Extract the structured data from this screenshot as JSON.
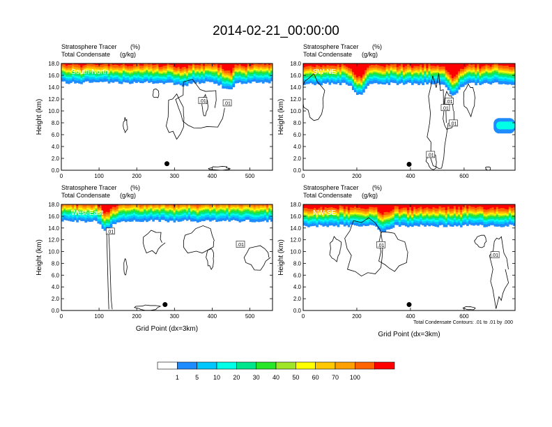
{
  "title": "2014-02-21_00:00:00",
  "colors": [
    "#ffffff",
    "#1e8cff",
    "#00c8ff",
    "#00ffe6",
    "#00e68c",
    "#28e628",
    "#a0e628",
    "#ffff00",
    "#ffc800",
    "#ffa000",
    "#ff6400",
    "#ff0000"
  ],
  "colorbar": {
    "labels": [
      "1",
      "5",
      "10",
      "20",
      "30",
      "40",
      "50",
      "60",
      "70",
      "100"
    ]
  },
  "note": "Total Condensate Contours: .01 to .01 by .000",
  "chart_data": [
    {
      "type": "heatmap",
      "subtitle_left": "Stratosphere Tracer",
      "subtitle_right": "(%)",
      "subtitle2_left": "Total Condensate",
      "subtitle2_right": "(g/kg)",
      "direction_label": "South-North",
      "ylabel": "Height (km)",
      "xlabel": "",
      "xlim": [
        0,
        560
      ],
      "ylim": [
        0,
        18
      ],
      "xticks": [
        "0",
        "100",
        "200",
        "300",
        "400",
        "500"
      ],
      "xtick_values": [
        0,
        100,
        200,
        300,
        400,
        500
      ],
      "yticks": [
        "0.0",
        "2.0",
        "4.0",
        "6.0",
        "8.0",
        "10.0",
        "12.0",
        "14.0",
        "16.0",
        "18.0"
      ],
      "contour_labels": [
        ".01",
        ".01"
      ],
      "contour_label_pos": [
        [
          375,
          11.7
        ],
        [
          440,
          11.3
        ]
      ],
      "tracer_base_km": 14.8,
      "dip": [
        [
          320,
          0.6
        ],
        [
          440,
          1.2
        ]
      ],
      "marker": [
        280,
        1.1
      ]
    },
    {
      "type": "heatmap",
      "subtitle_left": "Stratosphere Tracer",
      "subtitle_right": "(%)",
      "subtitle2_left": "Total Condensate",
      "subtitle2_right": "(g/kg)",
      "direction_label": "SW-NE",
      "ylabel": "Height (km)",
      "xlabel": "",
      "xlim": [
        0,
        790
      ],
      "ylim": [
        0,
        18
      ],
      "xticks": [
        "0",
        "200",
        "400",
        "600"
      ],
      "xtick_values": [
        0,
        200,
        400,
        600
      ],
      "yticks": [
        "0.0",
        "2.0",
        "4.0",
        "6.0",
        "8.0",
        "10.0",
        "12.0",
        "14.0",
        "16.0",
        "18.0"
      ],
      "contour_labels": [
        ".01",
        ".01",
        ".01",
        ".01"
      ],
      "contour_label_pos": [
        [
          545,
          11.6
        ],
        [
          530,
          10.5
        ],
        [
          560,
          7.9
        ],
        [
          475,
          2.6
        ]
      ],
      "tracer_base_km": 14.6,
      "dip": [
        [
          210,
          1.8
        ],
        [
          560,
          2.0
        ]
      ],
      "marker": [
        395,
        1.0
      ]
    },
    {
      "type": "heatmap",
      "subtitle_left": "Stratosphere Tracer",
      "subtitle_right": "(%)",
      "subtitle2_left": "Total Condensate",
      "subtitle2_right": "(g/kg)",
      "direction_label": "West-East",
      "ylabel": "Height (km)",
      "xlabel": "Grid Point (dx=3km)",
      "xlim": [
        0,
        560
      ],
      "ylim": [
        0,
        18
      ],
      "xticks": [
        "0",
        "100",
        "200",
        "300",
        "400",
        "500"
      ],
      "xtick_values": [
        0,
        100,
        200,
        300,
        400,
        500
      ],
      "yticks": [
        "0.0",
        "2.0",
        "4.0",
        "6.0",
        "8.0",
        "10.0",
        "12.0",
        "14.0",
        "16.0",
        "18.0"
      ],
      "contour_labels": [
        ".01",
        ".01"
      ],
      "contour_label_pos": [
        [
          130,
          13.4
        ],
        [
          475,
          11.2
        ]
      ],
      "tracer_base_km": 15.2,
      "dip": [
        [
          120,
          1.5
        ]
      ],
      "marker": [
        275,
        1.0
      ]
    },
    {
      "type": "heatmap",
      "subtitle_left": "Stratosphere Tracer",
      "subtitle_right": "(%)",
      "subtitle2_left": "Total Condensate",
      "subtitle2_right": "(g/kg)",
      "direction_label": "NW-SE",
      "ylabel": "Height (km)",
      "xlabel": "Grid Point (dx=3km)",
      "xlim": [
        0,
        790
      ],
      "ylim": [
        0,
        18
      ],
      "xticks": [
        "0",
        "200",
        "400",
        "600"
      ],
      "xtick_values": [
        0,
        200,
        400,
        600
      ],
      "yticks": [
        "0.0",
        "2.0",
        "4.0",
        "6.0",
        "8.0",
        "10.0",
        "12.0",
        "14.0",
        "16.0",
        "18.0"
      ],
      "contour_labels": [
        ".01",
        ".01"
      ],
      "contour_label_pos": [
        [
          290,
          11.1
        ],
        [
          715,
          9.4
        ]
      ],
      "tracer_base_km": 14.4,
      "dip": [
        [
          300,
          0.9
        ]
      ],
      "marker": [
        395,
        1.0
      ]
    }
  ]
}
